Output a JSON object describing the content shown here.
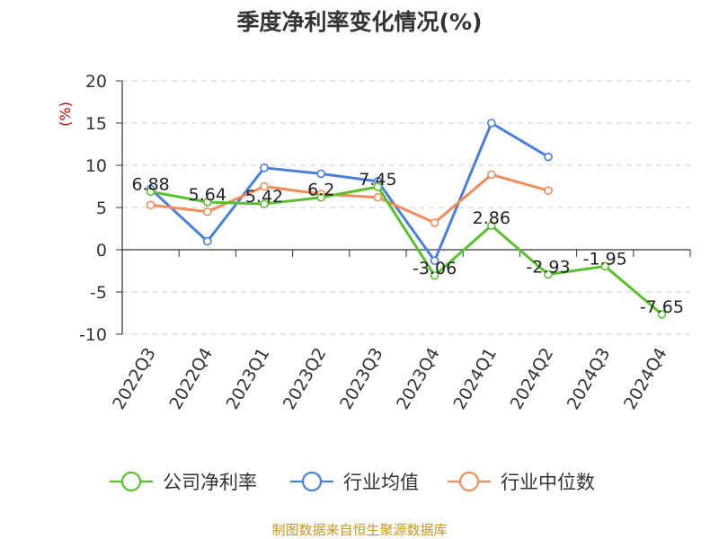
{
  "chart_data": {
    "type": "line",
    "title": "季度净利率变化情况(%)",
    "ylabel": "(%)",
    "ylim": [
      -10,
      20
    ],
    "yticks": [
      "20",
      "15",
      "10",
      "5",
      "0",
      "-5",
      "-10"
    ],
    "grid": true,
    "legend_position": "bottom",
    "categories": [
      "2022Q3",
      "2022Q4",
      "2023Q1",
      "2023Q2",
      "2023Q3",
      "2023Q4",
      "2024Q1",
      "2024Q2",
      "2024Q3",
      "2024Q4"
    ],
    "series": [
      {
        "name": "公司净利率",
        "color": "#5ac02f",
        "values": [
          6.88,
          5.64,
          5.42,
          6.2,
          7.45,
          -3.06,
          2.86,
          -2.93,
          -1.95,
          -7.65
        ],
        "labels": [
          "6.88",
          "5.64",
          "5.42",
          "6.2",
          "7.45",
          "-3.06",
          "2.86",
          "-2.93",
          "-1.95",
          "-7.65"
        ]
      },
      {
        "name": "行业均值",
        "color": "#4a7fdb",
        "values": [
          7.2,
          1.0,
          9.7,
          9.0,
          8.1,
          -1.3,
          15.0,
          11.0,
          null,
          null
        ]
      },
      {
        "name": "行业中位数",
        "color": "#f28c5a",
        "values": [
          5.3,
          4.5,
          7.5,
          6.6,
          6.2,
          3.2,
          8.9,
          7.0,
          null,
          null
        ]
      }
    ]
  },
  "source": "制图数据来自恒生聚源数据库"
}
